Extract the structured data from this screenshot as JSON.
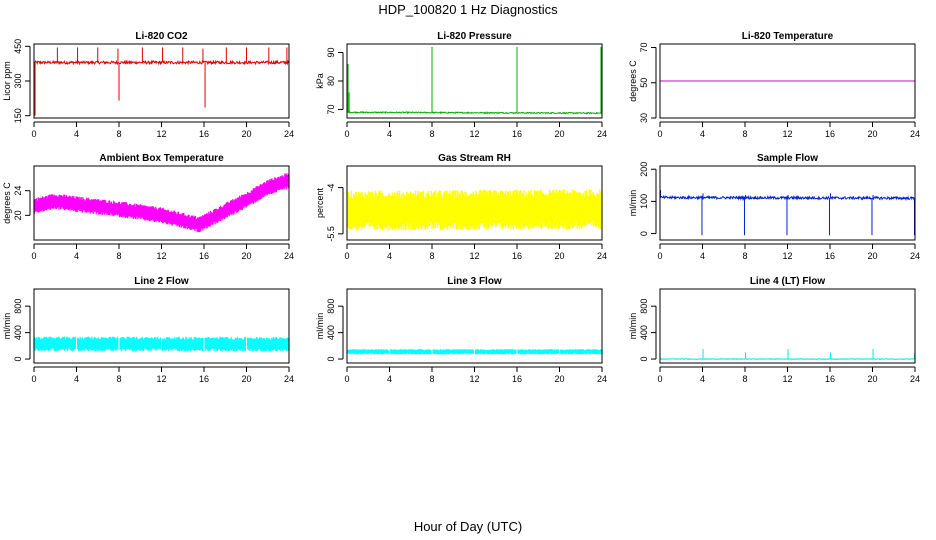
{
  "figure": {
    "title": "HDP_100820  1 Hz Diagnostics",
    "xlabel": "Hour of Day (UTC)"
  },
  "chart_data": [
    {
      "type": "line",
      "title": "Li-820 CO2",
      "ylabel": "Licor ppm",
      "xlim": [
        0,
        24
      ],
      "ylim": [
        140,
        460
      ],
      "xticks": [
        0,
        4,
        8,
        12,
        16,
        20,
        24
      ],
      "yticks": [
        150,
        300,
        450
      ],
      "color": "#e00000",
      "series": [
        {
          "base": 380,
          "noise": 6,
          "trend": [
            [
              0,
              380
            ],
            [
              24,
              380
            ]
          ],
          "spikes": [
            [
              0.1,
              150
            ],
            [
              2.2,
              445
            ],
            [
              4.1,
              445
            ],
            [
              6.0,
              445
            ],
            [
              7.9,
              440
            ],
            [
              8.0,
              215
            ],
            [
              10.2,
              445
            ],
            [
              12.1,
              445
            ],
            [
              14.0,
              445
            ],
            [
              15.9,
              440
            ],
            [
              16.1,
              185
            ],
            [
              18.1,
              445
            ],
            [
              20.0,
              445
            ],
            [
              22.1,
              445
            ],
            [
              23.8,
              445
            ]
          ]
        }
      ]
    },
    {
      "type": "line",
      "title": "Li-820 Pressure",
      "ylabel": "kPa",
      "xlim": [
        0,
        24
      ],
      "ylim": [
        67,
        93
      ],
      "xticks": [
        0,
        4,
        8,
        12,
        16,
        20,
        24
      ],
      "yticks": [
        70,
        80,
        90
      ],
      "color": "#00b000",
      "series": [
        {
          "base": 68.8,
          "noise": 0.2,
          "trend": [
            [
              0,
              69.0
            ],
            [
              24,
              68.7
            ]
          ],
          "spikes": [
            [
              0.1,
              86
            ],
            [
              0.2,
              76
            ],
            [
              8.0,
              92
            ],
            [
              16.0,
              92
            ],
            [
              23.9,
              92
            ]
          ]
        }
      ]
    },
    {
      "type": "line",
      "title": "Li-820 Temperature",
      "ylabel": "degrees C",
      "xlim": [
        0,
        24
      ],
      "ylim": [
        30,
        72
      ],
      "xticks": [
        0,
        4,
        8,
        12,
        16,
        20,
        24
      ],
      "yticks": [
        30,
        50,
        70
      ],
      "color": "#d000d0",
      "series": [
        {
          "base": 51,
          "noise": 0,
          "trend": [
            [
              0,
              51
            ],
            [
              24,
              51
            ]
          ],
          "spikes": []
        }
      ]
    },
    {
      "type": "area",
      "title": "Ambient Box Temperature",
      "ylabel": "degrees C",
      "xlim": [
        0,
        24
      ],
      "ylim": [
        16,
        28
      ],
      "xticks": [
        0,
        4,
        8,
        12,
        16,
        20,
        24
      ],
      "yticks": [
        20,
        24
      ],
      "color": "#ff00ff",
      "series": [
        {
          "band": 1.3,
          "trend": [
            [
              0,
              21.5
            ],
            [
              2,
              22.3
            ],
            [
              4,
              21.8
            ],
            [
              8,
              21.0
            ],
            [
              12,
              20.0
            ],
            [
              15.5,
              18.5
            ],
            [
              17,
              19.8
            ],
            [
              20,
              22.5
            ],
            [
              22,
              24.5
            ],
            [
              24,
              25.7
            ]
          ]
        }
      ]
    },
    {
      "type": "area",
      "title": "Gas Stream RH",
      "ylabel": "percent",
      "xlim": [
        0,
        24
      ],
      "ylim": [
        -5.7,
        -3.3
      ],
      "xticks": [
        0,
        4,
        8,
        12,
        16,
        20,
        24
      ],
      "yticks": [
        -5.5,
        -4.0
      ],
      "color": "#ffff00",
      "series": [
        {
          "band": 0.65,
          "trend": [
            [
              0,
              -4.75
            ],
            [
              24,
              -4.7
            ]
          ]
        }
      ]
    },
    {
      "type": "line",
      "title": "Sample Flow",
      "ylabel": "ml/min",
      "xlim": [
        0,
        24
      ],
      "ylim": [
        -20,
        210
      ],
      "xticks": [
        0,
        4,
        8,
        12,
        16,
        20,
        24
      ],
      "yticks": [
        0,
        100,
        200
      ],
      "color": "#0020d0",
      "series": [
        {
          "base": 110,
          "noise": 4,
          "trend": [
            [
              0,
              112
            ],
            [
              24,
              110
            ]
          ],
          "spikes": [
            [
              0.05,
              135
            ],
            [
              3.95,
              -5
            ],
            [
              4.05,
              125
            ],
            [
              7.95,
              -5
            ],
            [
              8.05,
              120
            ],
            [
              11.95,
              -5
            ],
            [
              12.05,
              120
            ],
            [
              15.95,
              -5
            ],
            [
              16.05,
              125
            ],
            [
              19.95,
              -5
            ],
            [
              20.05,
              120
            ],
            [
              23.95,
              -5
            ]
          ]
        }
      ]
    },
    {
      "type": "area",
      "title": "Line 2 Flow",
      "ylabel": "ml/min",
      "xlim": [
        0,
        24
      ],
      "ylim": [
        -60,
        1060
      ],
      "xticks": [
        0,
        4,
        8,
        12,
        16,
        20,
        24
      ],
      "yticks": [
        0,
        400,
        800
      ],
      "color": "#00ffff",
      "series": [
        {
          "band": 110,
          "trend": [
            [
              0,
              230
            ],
            [
              24,
              225
            ]
          ],
          "gaps": [
            4,
            8,
            12,
            16,
            20
          ]
        }
      ]
    },
    {
      "type": "area",
      "title": "Line 3 Flow",
      "ylabel": "ml/min",
      "xlim": [
        0,
        24
      ],
      "ylim": [
        -60,
        1060
      ],
      "xticks": [
        0,
        4,
        8,
        12,
        16,
        20,
        24
      ],
      "yticks": [
        0,
        400,
        800
      ],
      "color": "#00ffff",
      "series": [
        {
          "band": 40,
          "trend": [
            [
              0,
              110
            ],
            [
              24,
              110
            ]
          ],
          "gaps": [
            4,
            8,
            12,
            16,
            20
          ]
        }
      ]
    },
    {
      "type": "line",
      "title": "Line 4 (LT) Flow",
      "ylabel": "ml/min",
      "xlim": [
        0,
        24
      ],
      "ylim": [
        -60,
        1060
      ],
      "xticks": [
        0,
        4,
        8,
        12,
        16,
        20,
        24
      ],
      "yticks": [
        0,
        400,
        800
      ],
      "color": "#00e8e8",
      "series": [
        {
          "base": 0,
          "noise": 4,
          "trend": [
            [
              0,
              0
            ],
            [
              24,
              0
            ]
          ],
          "spikes": [
            [
              4.05,
              150
            ],
            [
              8.05,
              100
            ],
            [
              12.05,
              150
            ],
            [
              16.05,
              100
            ],
            [
              20.05,
              150
            ],
            [
              23.95,
              90
            ]
          ]
        }
      ]
    }
  ]
}
